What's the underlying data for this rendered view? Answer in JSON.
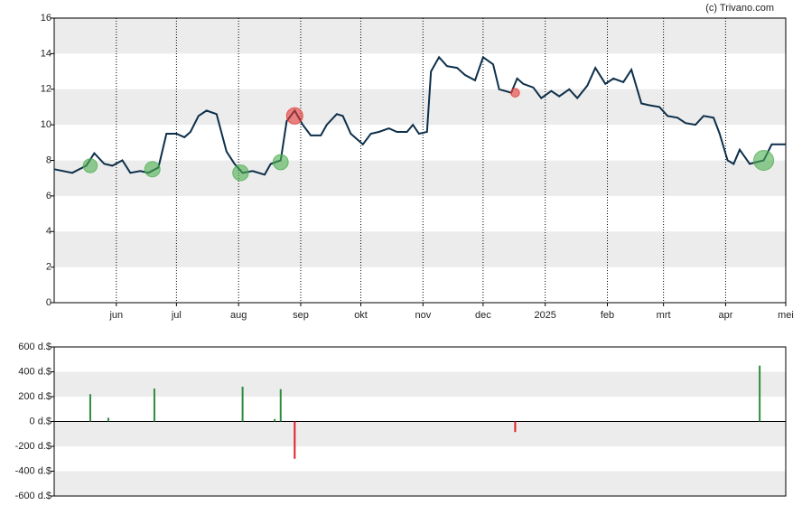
{
  "chart_data": [
    {
      "type": "line",
      "credit": "(c) Trivano.com",
      "xlim": [
        0,
        365
      ],
      "xticks": [
        {
          "value": 31,
          "label": "jun"
        },
        {
          "value": 61,
          "label": "jul"
        },
        {
          "value": 92,
          "label": "aug"
        },
        {
          "value": 123,
          "label": "sep"
        },
        {
          "value": 153,
          "label": "okt"
        },
        {
          "value": 184,
          "label": "nov"
        },
        {
          "value": 214,
          "label": "dec"
        },
        {
          "value": 245,
          "label": "2025"
        },
        {
          "value": 276,
          "label": "feb"
        },
        {
          "value": 304,
          "label": "mrt"
        },
        {
          "value": 335,
          "label": "apr"
        },
        {
          "value": 365,
          "label": "mei"
        }
      ],
      "ylim": [
        0,
        16
      ],
      "yticks": [
        0,
        2,
        4,
        6,
        8,
        10,
        12,
        14,
        16
      ],
      "grid": true,
      "color": "#0d2f4a",
      "x": [
        0,
        9,
        16,
        20,
        25,
        29,
        34,
        38,
        43,
        47,
        52,
        56,
        61,
        65,
        68,
        72,
        76,
        81,
        86,
        90,
        94,
        99,
        105,
        108,
        113,
        116,
        120,
        124,
        128,
        133,
        136,
        141,
        144,
        148,
        151,
        154,
        158,
        162,
        167,
        171,
        176,
        179,
        182,
        186,
        188,
        192,
        196,
        201,
        205,
        210,
        214,
        219,
        222,
        225,
        228,
        231,
        234,
        239,
        243,
        248,
        252,
        257,
        261,
        266,
        270,
        275,
        279,
        284,
        288,
        293,
        297,
        302,
        306,
        311,
        315,
        320,
        324,
        329,
        332,
        336,
        339,
        342,
        347,
        354,
        358,
        365
      ],
      "values": [
        7.5,
        7.3,
        7.7,
        8.4,
        7.8,
        7.7,
        8.0,
        7.3,
        7.4,
        7.3,
        7.6,
        9.5,
        9.5,
        9.3,
        9.6,
        10.5,
        10.8,
        10.6,
        8.5,
        7.8,
        7.3,
        7.4,
        7.2,
        7.8,
        8.0,
        10.2,
        10.8,
        10.0,
        9.4,
        9.4,
        10.0,
        10.6,
        10.5,
        9.5,
        9.2,
        8.9,
        9.5,
        9.6,
        9.8,
        9.6,
        9.6,
        10.0,
        9.5,
        9.6,
        13.0,
        13.8,
        13.3,
        13.2,
        12.8,
        12.5,
        13.8,
        13.4,
        12.0,
        11.9,
        11.8,
        12.6,
        12.3,
        12.1,
        11.5,
        11.9,
        11.6,
        12.0,
        11.5,
        12.2,
        13.2,
        12.3,
        12.6,
        12.4,
        13.1,
        11.2,
        11.1,
        11.0,
        10.5,
        10.4,
        10.1,
        10.0,
        10.5,
        10.4,
        9.5,
        8.0,
        7.8,
        8.6,
        7.8,
        8.0,
        8.9,
        8.9
      ],
      "markers": {
        "x": [
          18,
          49,
          93,
          113,
          120,
          230,
          354
        ],
        "values": [
          7.7,
          7.5,
          7.3,
          7.9,
          10.5,
          11.8,
          8.0
        ],
        "sizes": [
          220,
          265,
          280,
          260,
          300,
          85,
          450
        ],
        "colors": [
          "#4caf50",
          "#4caf50",
          "#4caf50",
          "#4caf50",
          "#e53935",
          "#e53935",
          "#4caf50"
        ]
      }
    },
    {
      "type": "bar",
      "xlim": [
        0,
        365
      ],
      "ylim": [
        -600,
        600
      ],
      "yticks": [
        {
          "value": -600,
          "label": "-600 d.$"
        },
        {
          "value": -400,
          "label": "-400 d.$"
        },
        {
          "value": -200,
          "label": "-200 d.$"
        },
        {
          "value": 0,
          "label": "0 d.$"
        },
        {
          "value": 200,
          "label": "200 d.$"
        },
        {
          "value": 400,
          "label": "400 d.$"
        },
        {
          "value": 600,
          "label": "600 d.$"
        }
      ],
      "grid": true,
      "x": [
        18,
        27,
        50,
        94,
        110,
        113,
        120,
        230,
        352
      ],
      "values": [
        220,
        30,
        265,
        280,
        20,
        260,
        -300,
        -85,
        450
      ],
      "colors": [
        "#2e8b3e",
        "#2e8b3e",
        "#2e8b3e",
        "#2e8b3e",
        "#2e8b3e",
        "#2e8b3e",
        "#e0202a",
        "#e0202a",
        "#2e8b3e"
      ]
    }
  ]
}
